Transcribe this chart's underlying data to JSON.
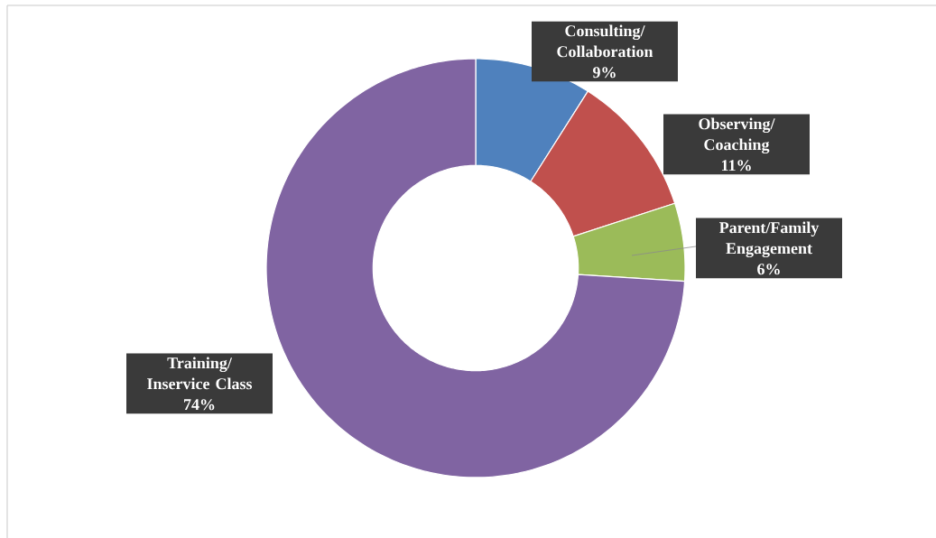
{
  "chart_data": {
    "type": "donut",
    "categories": [
      "Consulting/ Collaboration",
      "Observing/ Coaching",
      "Parent/Family Engagement",
      "Training/ Inservice Class"
    ],
    "values": [
      9,
      11,
      6,
      74
    ],
    "colors": [
      "#4f81bd",
      "#c0504d",
      "#9bbb59",
      "#8064a2"
    ],
    "value_labels": [
      "9%",
      "11%",
      "6%",
      "74%"
    ]
  }
}
